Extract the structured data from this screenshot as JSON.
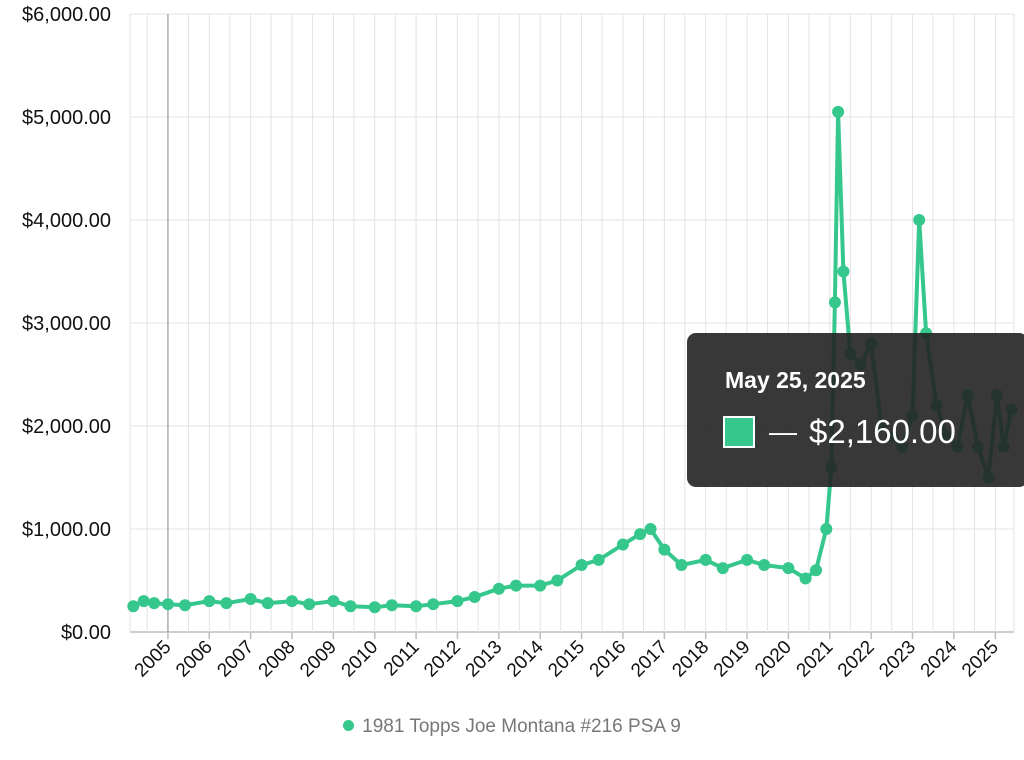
{
  "colors": {
    "series": "#35c78c",
    "tooltip_bg": "#222222"
  },
  "legend": {
    "label": "1981 Topps Joe Montana #216 PSA 9"
  },
  "tooltip": {
    "date": "May 25, 2025",
    "dash": "—",
    "value": "$2,160.00"
  },
  "chart_data": {
    "type": "line",
    "title": "",
    "xlabel": "",
    "ylabel": "",
    "ylim": [
      0,
      6000
    ],
    "y_ticks": [
      {
        "value": 0,
        "label": "$0.00"
      },
      {
        "value": 1000,
        "label": "$1,000.00"
      },
      {
        "value": 2000,
        "label": "$2,000.00"
      },
      {
        "value": 3000,
        "label": "$3,000.00"
      },
      {
        "value": 4000,
        "label": "$4,000.00"
      },
      {
        "value": 5000,
        "label": "$5,000.00"
      },
      {
        "value": 6000,
        "label": "$6,000.00"
      }
    ],
    "x_ticks": [
      "2005",
      "2006",
      "2007",
      "2008",
      "2009",
      "2010",
      "2011",
      "2012",
      "2013",
      "2014",
      "2015",
      "2016",
      "2017",
      "2018",
      "2019",
      "2020",
      "2021",
      "2022",
      "2023",
      "2024",
      "2025"
    ],
    "xlim": [
      "2004-02-01",
      "2025-06-15"
    ],
    "grid": true,
    "legend_position": "bottom",
    "series": [
      {
        "name": "1981 Topps Joe Montana #216 PSA 9",
        "x": [
          "2004-03-01",
          "2004-06-01",
          "2004-09-01",
          "2005-01-01",
          "2005-06-01",
          "2006-01-01",
          "2006-06-01",
          "2007-01-01",
          "2007-06-01",
          "2008-01-01",
          "2008-06-01",
          "2009-01-01",
          "2009-06-01",
          "2010-01-01",
          "2010-06-01",
          "2011-01-01",
          "2011-06-01",
          "2012-01-01",
          "2012-06-01",
          "2013-01-01",
          "2013-06-01",
          "2014-01-01",
          "2014-06-01",
          "2015-01-01",
          "2015-06-01",
          "2016-01-01",
          "2016-06-01",
          "2016-09-01",
          "2017-01-01",
          "2017-06-01",
          "2018-01-01",
          "2018-06-01",
          "2019-01-01",
          "2019-06-01",
          "2020-01-01",
          "2020-06-01",
          "2020-09-01",
          "2020-12-01",
          "2021-01-15",
          "2021-02-15",
          "2021-03-15",
          "2021-05-01",
          "2021-07-01",
          "2021-10-01",
          "2022-01-01",
          "2022-04-01",
          "2022-07-01",
          "2022-10-01",
          "2023-01-01",
          "2023-03-01",
          "2023-05-01",
          "2023-08-01",
          "2023-11-01",
          "2024-02-01",
          "2024-05-01",
          "2024-08-01",
          "2024-11-01",
          "2025-01-15",
          "2025-03-15",
          "2025-05-25"
        ],
        "y": [
          250,
          300,
          280,
          270,
          260,
          300,
          280,
          320,
          280,
          300,
          270,
          300,
          250,
          240,
          260,
          250,
          270,
          300,
          340,
          420,
          450,
          450,
          500,
          650,
          700,
          850,
          950,
          1000,
          800,
          650,
          700,
          620,
          700,
          650,
          620,
          520,
          600,
          1000,
          1600,
          3200,
          5050,
          3500,
          2700,
          2600,
          2800,
          2000,
          1900,
          1800,
          2100,
          4000,
          2900,
          2200,
          1900,
          1800,
          2300,
          1800,
          1500,
          2300,
          1800,
          2160
        ]
      }
    ]
  }
}
